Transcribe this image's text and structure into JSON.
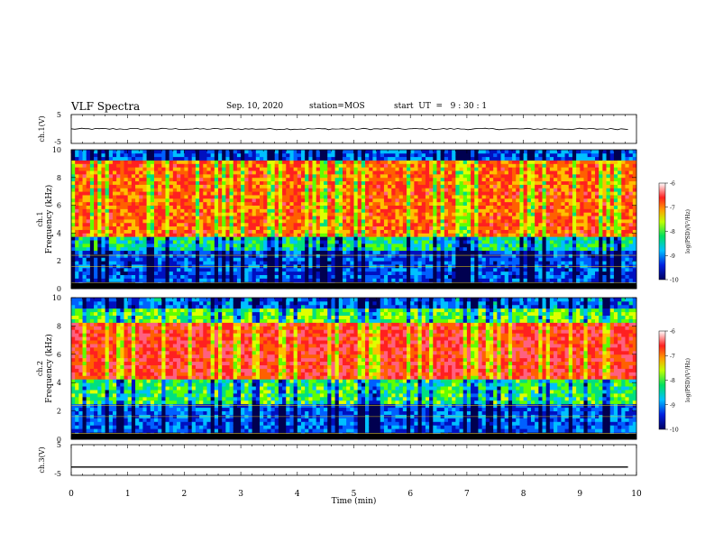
{
  "header": {
    "title": "VLF Spectra",
    "date": "Sep. 10, 2020",
    "station": "station=MOS",
    "start": "start  UT  =   9 : 30 : 1"
  },
  "chart_data": [
    {
      "type": "line",
      "panel": "ch1-waveform",
      "ylabel": "ch.1(V)",
      "ylim": [
        -5,
        5
      ],
      "yticks": [
        "5",
        "-5"
      ],
      "x": [
        0,
        9.85
      ],
      "series": [
        {
          "values": [
            0,
            0
          ]
        }
      ]
    },
    {
      "type": "heatmap",
      "panel": "ch1-spectrogram",
      "ylabel": [
        "ch.1",
        "Frequency (kHz)"
      ],
      "ylim": [
        0,
        10
      ],
      "yticks": [
        "0",
        "2",
        "4",
        "6",
        "8",
        "10"
      ],
      "xlim": [
        0,
        10
      ],
      "colorbar": {
        "label": "log(PSD)(V²/Hz)",
        "ticks": [
          "-6",
          "-7",
          "-8",
          "-9",
          "-10"
        ],
        "range": [
          -10,
          -6
        ]
      }
    },
    {
      "type": "heatmap",
      "panel": "ch2-spectrogram",
      "ylabel": [
        "ch.2",
        "Frequency (kHz)"
      ],
      "ylim": [
        0,
        10
      ],
      "yticks": [
        "0",
        "2",
        "4",
        "6",
        "8",
        "10"
      ],
      "xlim": [
        0,
        10
      ],
      "colorbar": {
        "label": "log(PSD)(V²/Hz)",
        "ticks": [
          "-6",
          "-7",
          "-8",
          "-9",
          "-10"
        ],
        "range": [
          -10,
          -6
        ]
      }
    },
    {
      "type": "line",
      "panel": "ch3-waveform",
      "ylabel": "ch.3(V)",
      "ylim": [
        -5,
        5
      ],
      "yticks": [
        "5",
        "-5"
      ],
      "x": [
        0,
        9.85
      ],
      "series": [
        {
          "values": [
            -2.3,
            -2.3
          ]
        }
      ]
    }
  ],
  "xaxis": {
    "label": "Time (min)",
    "xlim": [
      0,
      10
    ],
    "ticks": [
      "0",
      "1",
      "2",
      "3",
      "4",
      "5",
      "6",
      "7",
      "8",
      "9",
      "10"
    ]
  }
}
